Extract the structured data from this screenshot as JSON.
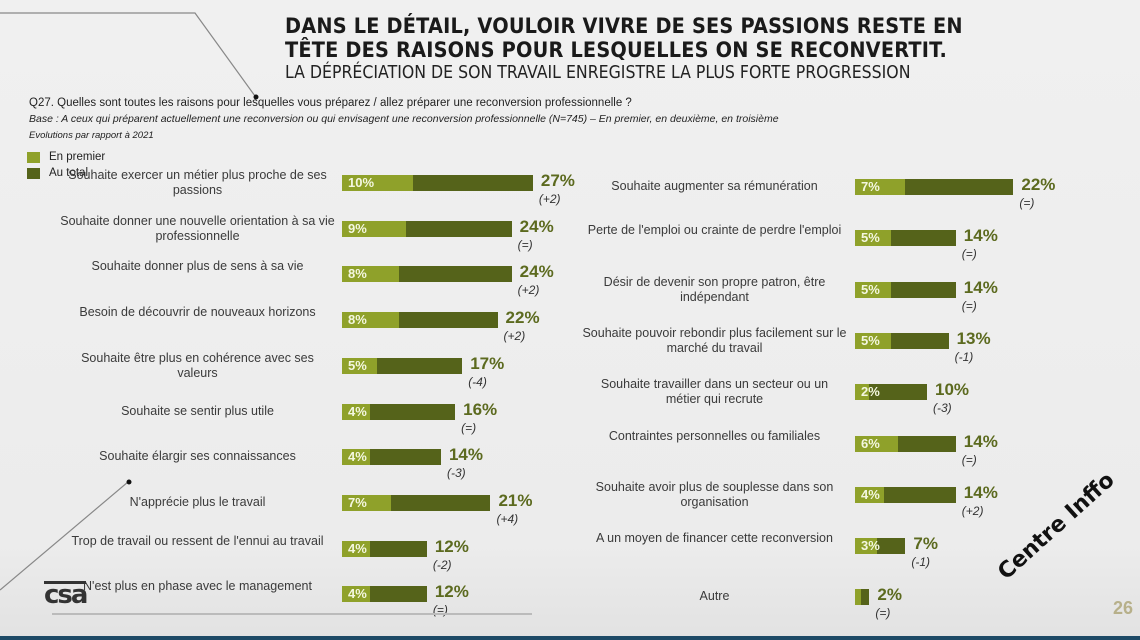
{
  "header": {
    "title_line1": "DANS LE DÉTAIL, VOULOIR VIVRE DE SES PASSIONS RESTE EN",
    "title_line2": "TÊTE DES RAISONS POUR LESQUELLES ON SE RECONVERTIT.",
    "subtitle": "LA DÉPRÉCIATION DE SON TRAVAIL ENREGISTRE LA PLUS FORTE PROGRESSION"
  },
  "question": "Q27. Quelles sont toutes les raisons pour lesquelles vous préparez / allez préparer une reconversion professionnelle ?",
  "base": "Base : A ceux qui préparent actuellement une reconversion ou qui envisagent une reconversion professionnelle (N=745) – En premier, en deuxième, en troisième",
  "evolutions_note": "Evolutions par rapport à 2021",
  "colors": {
    "first": "#8fa12a",
    "total": "#55631a",
    "value_text": "#5c6a1f"
  },
  "footer": {
    "logo": "csa",
    "watermark": "Centre Inffo",
    "page_number": "26"
  },
  "chart_data": {
    "type": "bar",
    "orientation": "horizontal-stacked-overlay",
    "title": "DANS LE DÉTAIL, VOULOIR VIVRE DE SES PASSIONS RESTE EN TÊTE DES RAISONS POUR LESQUELLES ON SE RECONVERTIT.",
    "legend": [
      {
        "name": "En premier",
        "color": "#8fa12a"
      },
      {
        "name": "Au total",
        "color": "#55631a"
      }
    ],
    "legend_position": "top-left",
    "unit": "%",
    "left_column": [
      {
        "label": "Souhaite exercer un métier plus proche de ses passions",
        "first": 10,
        "total": 27,
        "evolution": "(+2)"
      },
      {
        "label": "Souhaite donner une nouvelle orientation à sa vie professionnelle",
        "first": 9,
        "total": 24,
        "evolution": "(=)"
      },
      {
        "label": "Souhaite donner plus de sens à sa vie",
        "first": 8,
        "total": 24,
        "evolution": "(+2)"
      },
      {
        "label": "Besoin de découvrir de nouveaux horizons",
        "first": 8,
        "total": 22,
        "evolution": "(+2)"
      },
      {
        "label": "Souhaite être plus en cohérence avec ses valeurs",
        "first": 5,
        "total": 17,
        "evolution": "(-4)"
      },
      {
        "label": "Souhaite se sentir plus utile",
        "first": 4,
        "total": 16,
        "evolution": "(=)"
      },
      {
        "label": "Souhaite élargir ses connaissances",
        "first": 4,
        "total": 14,
        "evolution": "(-3)"
      },
      {
        "label": "N'apprécie plus le travail",
        "first": 7,
        "total": 21,
        "evolution": "(+4)"
      },
      {
        "label": "Trop de travail ou ressent de l'ennui au travail",
        "first": 4,
        "total": 12,
        "evolution": "(-2)"
      },
      {
        "label": "N'est plus en phase avec le management",
        "first": 4,
        "total": 12,
        "evolution": "(=)"
      }
    ],
    "right_column": [
      {
        "label": "Souhaite augmenter sa rémunération",
        "first": 7,
        "total": 22,
        "evolution": "(=)"
      },
      {
        "label": "Perte de l'emploi ou crainte de perdre l'emploi",
        "first": 5,
        "total": 14,
        "evolution": "(=)"
      },
      {
        "label": "Désir de devenir son propre patron, être indépendant",
        "first": 5,
        "total": 14,
        "evolution": "(=)"
      },
      {
        "label": "Souhaite pouvoir rebondir plus facilement sur le marché du travail",
        "first": 5,
        "total": 13,
        "evolution": "(-1)"
      },
      {
        "label": "Souhaite travailler dans un secteur ou un métier qui recrute",
        "first": 2,
        "total": 10,
        "evolution": "(-3)"
      },
      {
        "label": "Contraintes personnelles ou familiales",
        "first": 6,
        "total": 14,
        "evolution": "(=)"
      },
      {
        "label": "Souhaite avoir plus de souplesse dans son organisation",
        "first": 4,
        "total": 14,
        "evolution": "(+2)"
      },
      {
        "label": "A un moyen de financer cette reconversion",
        "first": 3,
        "total": 7,
        "evolution": "(-1)"
      },
      {
        "label": "Autre",
        "first": null,
        "total": 2,
        "evolution": "(=)"
      }
    ]
  }
}
